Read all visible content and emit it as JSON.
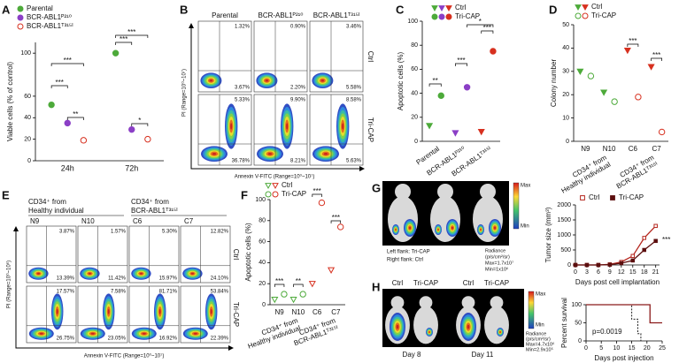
{
  "panels": [
    "A",
    "B",
    "C",
    "D",
    "E",
    "F",
    "G",
    "H"
  ],
  "chart_data": [
    {
      "type": "dot",
      "y_label": "Viable cells (% of control)",
      "categories": [
        "24h",
        "72h"
      ],
      "series": [
        {
          "name": "Parental",
          "color": "#4daa3a",
          "marker": "circle",
          "filled": true,
          "values": [
            52,
            100
          ]
        },
        {
          "name": "BCR-ABL1ᴾ²¹⁰",
          "color": "#8b3fc6",
          "marker": "circle",
          "filled": true,
          "values": [
            35,
            29
          ]
        },
        {
          "name": "BCR-ABL1ᵀ³¹⁵ᴵ",
          "color": "#d7301f",
          "marker": "circle",
          "filled": false,
          "values": [
            19,
            20
          ]
        }
      ],
      "ylim": [
        0,
        110
      ],
      "yticks": [
        0,
        20,
        40,
        60,
        100
      ],
      "annotations": [
        "***",
        "***",
        "**",
        "***",
        "***",
        "*"
      ]
    },
    {
      "type": "dot",
      "y_label": "Apoptotic cells (%)",
      "categories": [
        "Parental",
        "BCR-ABL1ᴾ²¹⁰",
        "BCR-ABL1ᵀ³¹⁵ᴵ"
      ],
      "series": [
        {
          "name": "Ctrl",
          "colors": [
            "#4daa3a",
            "#8b3fc6",
            "#d7301f"
          ],
          "marker": "triangle",
          "filled": true,
          "values": [
            13,
            7,
            8
          ]
        },
        {
          "name": "Tri-CAP",
          "colors": [
            "#4daa3a",
            "#8b3fc6",
            "#d7301f"
          ],
          "marker": "circle",
          "filled": true,
          "values": [
            38,
            45,
            75
          ]
        }
      ],
      "ylim": [
        0,
        100
      ],
      "yticks": [
        0,
        20,
        40,
        60,
        80,
        100
      ],
      "annotations": [
        "**",
        "***",
        "***",
        "*"
      ]
    },
    {
      "type": "dot",
      "y_label": "Colony number",
      "categories": [
        "N9",
        "N10",
        "C6",
        "C7"
      ],
      "groups": [
        [
          "CD34⁺ from",
          "Healthy individual"
        ],
        [
          "CD34⁺ from",
          "BCR-ABL1ᵀ³¹⁵ᴵ"
        ]
      ],
      "series": [
        {
          "name": "Ctrl",
          "colors": [
            "#4daa3a",
            "#4daa3a",
            "#d7301f",
            "#d7301f"
          ],
          "marker": "triangle",
          "filled": true,
          "values": [
            30,
            21,
            39,
            32
          ]
        },
        {
          "name": "Tri-CAP",
          "colors": [
            "#4daa3a",
            "#4daa3a",
            "#d7301f",
            "#d7301f"
          ],
          "marker": "circle",
          "filled": false,
          "values": [
            28,
            17,
            19,
            4
          ]
        }
      ],
      "ylim": [
        0,
        50
      ],
      "yticks": [
        0,
        10,
        20,
        30,
        40,
        50
      ],
      "annotations": [
        "***",
        "***"
      ]
    },
    {
      "type": "dot",
      "y_label": "Apoptotic cells (%)",
      "categories": [
        "N9",
        "N10",
        "C6",
        "C7"
      ],
      "groups": [
        [
          "CD34⁺ from",
          "Healthy individual"
        ],
        [
          "CD34⁺ from",
          "BCR-ABL1ᵀ³¹⁵ᴵ"
        ]
      ],
      "series": [
        {
          "name": "Ctrl",
          "colors": [
            "#4daa3a",
            "#4daa3a",
            "#d7301f",
            "#d7301f"
          ],
          "marker": "triangle",
          "filled": false,
          "values": [
            5,
            5,
            20,
            33
          ]
        },
        {
          "name": "Tri-CAP",
          "colors": [
            "#4daa3a",
            "#4daa3a",
            "#d7301f",
            "#d7301f"
          ],
          "marker": "circle",
          "filled": false,
          "values": [
            10,
            10,
            97,
            74
          ]
        }
      ],
      "ylim": [
        0,
        100
      ],
      "yticks": [
        0,
        20,
        40,
        60,
        80,
        100
      ],
      "annotations": [
        "***",
        "**",
        "***",
        "***"
      ]
    },
    {
      "type": "line",
      "y_label": "Tumor size (mm³)",
      "x_label": "Days post cell implantation",
      "x": [
        0,
        3,
        6,
        9,
        12,
        15,
        18,
        21
      ],
      "series": [
        {
          "name": "Ctrl",
          "color": "#b5261e",
          "marker": "square",
          "filled": false,
          "values": [
            0,
            0,
            0,
            20,
            100,
            300,
            900,
            1300
          ]
        },
        {
          "name": "Tri-CAP",
          "color": "#5c0f0f",
          "marker": "square",
          "filled": true,
          "values": [
            0,
            0,
            0,
            10,
            60,
            150,
            500,
            800
          ]
        }
      ],
      "xlim": [
        0,
        22
      ],
      "xticks": [
        0,
        3,
        6,
        9,
        12,
        15,
        18,
        21
      ],
      "ylim": [
        0,
        2000
      ],
      "yticks": [
        0,
        500,
        1000,
        1500,
        2000
      ],
      "annotations": [
        "***"
      ]
    },
    {
      "type": "line",
      "y_label": "Percent survival",
      "x_label": "Days post injection",
      "series": [
        {
          "color": "#222222",
          "dashed": true,
          "x": [
            0,
            15,
            15,
            17,
            17,
            18,
            18
          ],
          "values": [
            100,
            100,
            60,
            60,
            20,
            20,
            0
          ]
        },
        {
          "color": "#8b1a1a",
          "x": [
            0,
            21,
            21,
            25
          ],
          "values": [
            100,
            100,
            50,
            50
          ]
        }
      ],
      "xlim": [
        0,
        25
      ],
      "xticks": [
        0,
        5,
        10,
        15,
        20,
        25
      ],
      "ylim": [
        0,
        100
      ],
      "yticks": [
        0,
        50,
        100
      ],
      "annotations": [
        "p=0.0019"
      ]
    }
  ],
  "flow_B": {
    "columns": [
      "Parental",
      "BCR-ABL1ᴾ²¹⁰",
      "BCR-ABL1ᵀ³¹⁵ᴵ"
    ],
    "rows": [
      "Ctrl",
      "Tri-CAP"
    ],
    "quadrants": [
      [
        [
          "1.32%",
          "3.67%"
        ],
        [
          "0.90%",
          "2.20%"
        ],
        [
          "3.46%",
          "5.58%"
        ]
      ],
      [
        [
          "5.33%",
          "36.78%"
        ],
        [
          "9.90%",
          "8.21%"
        ],
        [
          "8.58%",
          "5.63%"
        ]
      ]
    ],
    "y_label": "PI (Range=10⁰~10⁷)",
    "x_label": "Annexin V-FITC (Range=10⁰~10⁷)"
  },
  "flow_E": {
    "groups": [
      [
        "CD34⁺ from",
        "Healthy individual"
      ],
      [
        "CD34⁺ from",
        "BCR-ABL1ᵀ³¹⁵ᴵ"
      ]
    ],
    "columns": [
      "N9",
      "N10",
      "C6",
      "C7"
    ],
    "rows": [
      "Ctrl",
      "Tri-CAP"
    ],
    "quadrants": [
      [
        [
          "3.87%",
          "13.39%"
        ],
        [
          "1.57%",
          "11.42%"
        ],
        [
          "5.30%",
          "15.97%"
        ],
        [
          "12.82%",
          "24.10%"
        ]
      ],
      [
        [
          "17.57%",
          "26.75%"
        ],
        [
          "7.58%",
          "23.05%"
        ],
        [
          "81.71%",
          "16.92%"
        ],
        [
          "53.84%",
          "22.39%"
        ]
      ]
    ],
    "y_label": "PI (Range=10⁰~10⁶)",
    "x_label": "Annexin V-FITC (Range=10⁰~10⁷)"
  },
  "imaging_G": {
    "scale": [
      "Max",
      "Min"
    ],
    "notes": [
      "Left flank: Tri-CAP",
      "Right flank: Ctrl"
    ],
    "radiance": [
      "Radiance",
      "(p/s/cm²/sr)",
      "Max=1.7x10⁷",
      "Min=1x10⁶"
    ]
  },
  "imaging_H": {
    "labels": [
      "Ctrl",
      "Tri-CAP",
      "Ctrl",
      "Tri-CAP"
    ],
    "days": [
      "Day 8",
      "Day 11"
    ],
    "scale": [
      "Max",
      "Min"
    ],
    "radiance": [
      "Radiance",
      "(p/s/cm²/sr)",
      "Max=4.7x10⁶",
      "Min=2.9x10⁵"
    ]
  }
}
